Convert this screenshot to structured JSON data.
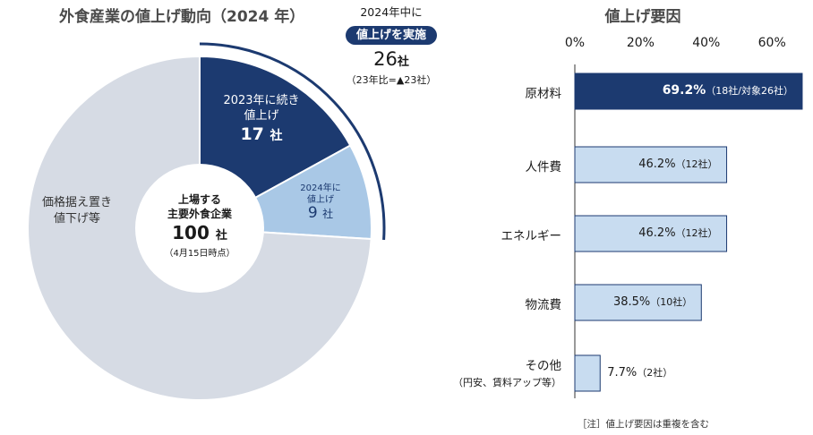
{
  "chart_data": [
    {
      "type": "pie",
      "title": "外食産業の値上げ動向（2024 年）",
      "center": {
        "line1": "上場する",
        "line2": "主要外食企業",
        "count": "100",
        "unit": "社",
        "date": "（4月15日時点）"
      },
      "slices": [
        {
          "name": "2023年に続き値上げ",
          "line1": "2023年に続き",
          "line2": "値上げ",
          "value": 17,
          "value_label": "17",
          "unit": "社",
          "color": "#1c3a70"
        },
        {
          "name": "2024年に値上げ",
          "line1": "2024年に",
          "line2": "値上げ",
          "value": 9,
          "value_label": "9",
          "unit": "社",
          "color": "#a9c8e6"
        },
        {
          "name": "価格据え置き値下げ等",
          "line1": "価格据え置き",
          "line2": "値下げ等",
          "value": 74,
          "color": "#d6dbe4"
        }
      ],
      "callout": {
        "header": "2024年中に",
        "pill": "値上げを実施",
        "count": "26",
        "unit": "社",
        "note": "（23年比=▲23社）"
      }
    },
    {
      "type": "bar",
      "orientation": "horizontal",
      "title": "値上げ要因",
      "xlim": [
        0,
        70
      ],
      "xticks": [
        {
          "value": 0,
          "label": "0%"
        },
        {
          "value": 20,
          "label": "20%"
        },
        {
          "value": 40,
          "label": "40%"
        },
        {
          "value": 60,
          "label": "60%"
        }
      ],
      "categories": [
        "原材料",
        "人件費",
        "エネルギー",
        "物流費",
        "その他"
      ],
      "category_sublabels": [
        "",
        "",
        "",
        "",
        "（円安、賃料アップ等）"
      ],
      "values": [
        69.2,
        46.2,
        46.2,
        38.5,
        7.7
      ],
      "value_labels": [
        "69.2%",
        "46.2%",
        "46.2%",
        "38.5%",
        "7.7%"
      ],
      "count_labels": [
        "（18社/対象26社）",
        "（12社）",
        "（12社）",
        "（10社）",
        "（2社）"
      ],
      "colors": {
        "highlight": "#1c3a70",
        "normal": "#c8dcf0",
        "border": "#1c3a70"
      },
      "note": "［注］値上げ要因は重複を含む"
    }
  ]
}
